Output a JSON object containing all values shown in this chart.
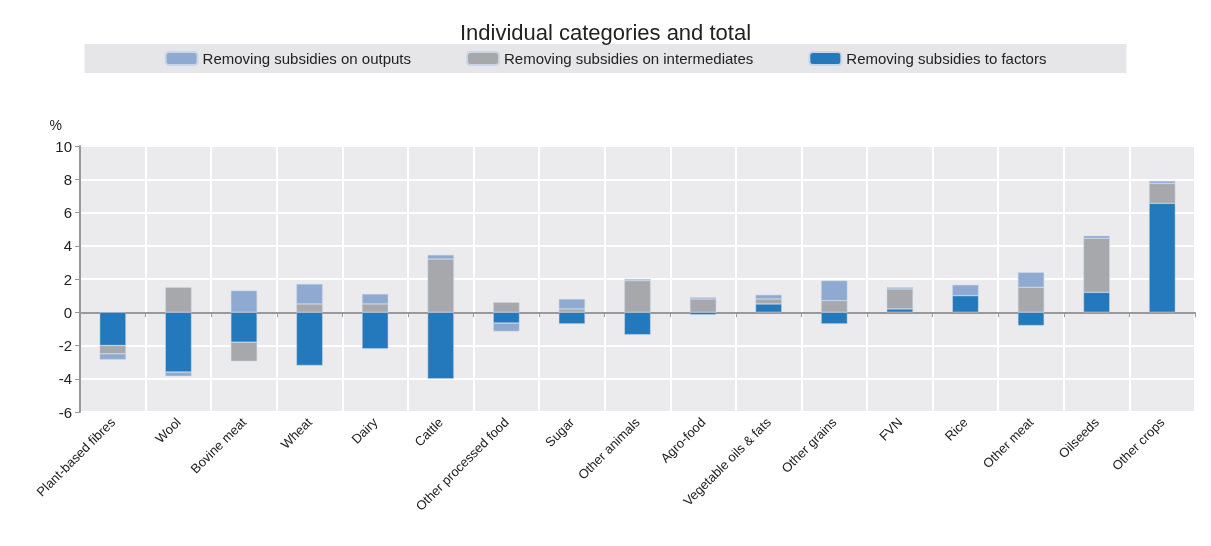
{
  "chart_data": {
    "type": "bar",
    "title": "Individual categories and total",
    "ylabel": "%",
    "categories": [
      "Plant-based fibres",
      "Wool",
      "Bovine meat",
      "Wheat",
      "Dairy",
      "Cattle",
      "Other processed food",
      "Sugar",
      "Other animals",
      "Agro-food",
      "Vegetable oils & fats",
      "Other grains",
      "FVN",
      "Rice",
      "Other meat",
      "Oilseeds",
      "Other crops"
    ],
    "series": [
      {
        "name": "Removing subsidies to factors",
        "color": "#2379bb",
        "values": [
          -2.0,
          -3.6,
          -1.8,
          -3.2,
          -2.2,
          -4.0,
          -0.65,
          -0.7,
          -1.35,
          -0.15,
          0.5,
          -0.7,
          0.2,
          1.0,
          -0.8,
          1.2,
          6.55
        ]
      },
      {
        "name": "Removing subsidies on intermediates",
        "color": "#a7a8ab",
        "values": [
          -0.5,
          1.5,
          -1.15,
          0.5,
          0.5,
          3.2,
          0.6,
          0.2,
          1.9,
          0.8,
          0.3,
          0.7,
          1.2,
          null,
          1.5,
          3.25,
          1.2
        ]
      },
      {
        "name": "Removing subsidies on outputs",
        "color": "#8eaad1",
        "values": [
          -0.35,
          -0.25,
          1.3,
          1.2,
          0.6,
          0.25,
          -0.5,
          0.6,
          0.1,
          0.1,
          0.25,
          1.2,
          0.1,
          0.65,
          0.9,
          0.15,
          0.15
        ]
      }
    ],
    "stacked": true,
    "ylim": [
      -6,
      10
    ],
    "yticks": [
      -6,
      -4,
      -2,
      0,
      2,
      4,
      6,
      8,
      10
    ],
    "grid": true,
    "legend": "top"
  }
}
